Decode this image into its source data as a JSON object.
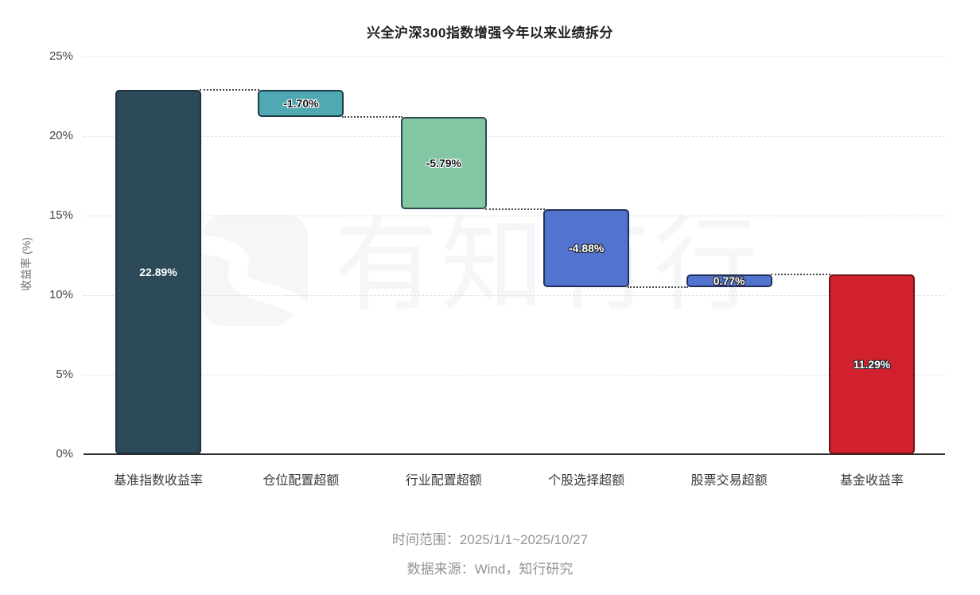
{
  "title": "兴全沪深300指数增强今年以来业绩拆分",
  "watermark": {
    "text": "有知有行",
    "logo": "youzhiyouxing-logo"
  },
  "footer": {
    "line1": "时间范围：2025/1/1~2025/10/27",
    "line2": "数据来源：Wind，知行研究"
  },
  "colors": {
    "background": "#ffffff",
    "grid": "#e2e2e2",
    "axis": "#2e2e2e",
    "connector": "#4a4a4a",
    "watermark": "#f5f6f7"
  },
  "chart_data": {
    "type": "bar",
    "subtype": "waterfall",
    "title": "兴全沪深300指数增强今年以来业绩拆分",
    "xlabel": "",
    "ylabel": "收益率 (%)",
    "ylim": [
      0,
      25
    ],
    "grid": "horizontal-dashed",
    "legend": "none",
    "yticks": [
      0,
      5,
      10,
      15,
      20,
      25
    ],
    "ytick_labels": [
      "0%",
      "5%",
      "10%",
      "15%",
      "20%",
      "25%"
    ],
    "categories": [
      "基准指数收益率",
      "仓位配置超额",
      "行业配置超额",
      "个股选择超额",
      "股票交易超额",
      "基金收益率"
    ],
    "bars": [
      {
        "label": "基准指数收益率",
        "value": 22.89,
        "display": "22.89%",
        "start": 0,
        "end": 22.89,
        "fill": "#2c4a57",
        "border": "#1e303c",
        "label_style": "plain-light"
      },
      {
        "label": "仓位配置超额",
        "value": -1.7,
        "display": "-1.70%",
        "start": 22.89,
        "end": 21.19,
        "fill": "#4fa8b2",
        "border": "#1e3a44",
        "label_style": "dark-on-light"
      },
      {
        "label": "行业配置超额",
        "value": -5.79,
        "display": "-5.79%",
        "start": 21.19,
        "end": 15.4,
        "fill": "#84c7a4",
        "border": "#2f4a52",
        "label_style": "dark-on-light"
      },
      {
        "label": "个股选择超额",
        "value": -4.88,
        "display": "-4.88%",
        "start": 15.4,
        "end": 10.52,
        "fill": "#5274ce",
        "border": "#22315c",
        "label_style": "light-on-dark"
      },
      {
        "label": "股票交易超额",
        "value": 0.77,
        "display": "0.77%",
        "start": 10.52,
        "end": 11.29,
        "fill": "#5274ce",
        "border": "#22315c",
        "label_style": "light-on-dark"
      },
      {
        "label": "基金收益率",
        "value": 11.29,
        "display": "11.29%",
        "start": 0,
        "end": 11.29,
        "fill": "#d1212e",
        "border": "#6f1016",
        "label_style": "light-on-dark"
      }
    ]
  }
}
